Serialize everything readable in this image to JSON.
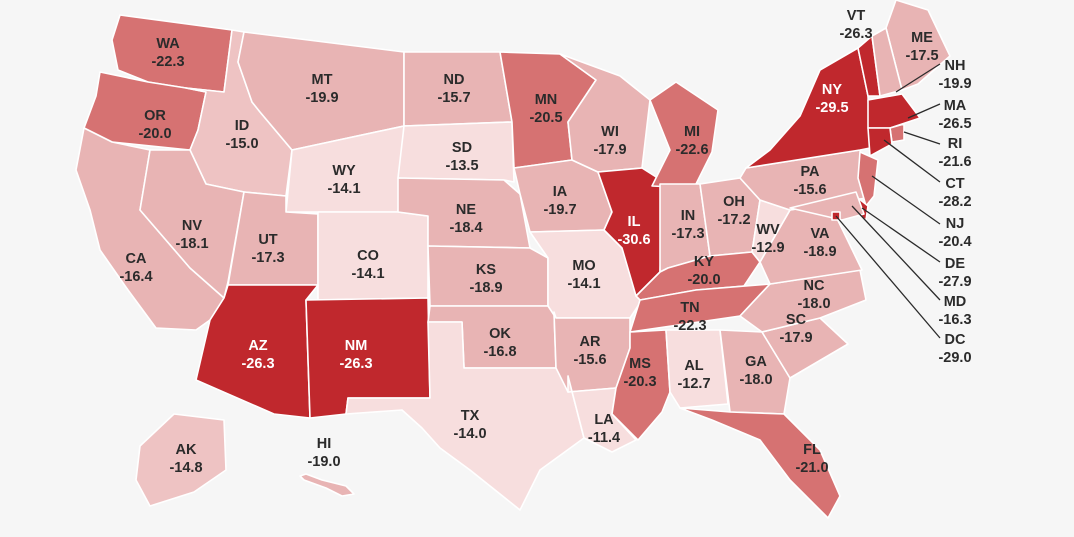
{
  "map": {
    "colors": {
      "shade_1": "#f7dede",
      "shade_2": "#eec3c3",
      "shade_3": "#e8b4b4",
      "shade_4": "#d67272",
      "shade_5": "#c0282d",
      "background": "#f6f6f6",
      "text_dark": "#2b2b2b",
      "text_light": "#ffffff"
    },
    "states": [
      {
        "abbr": "WA",
        "value": "-22.3"
      },
      {
        "abbr": "OR",
        "value": "-20.0"
      },
      {
        "abbr": "CA",
        "value": "-16.4"
      },
      {
        "abbr": "ID",
        "value": "-15.0"
      },
      {
        "abbr": "NV",
        "value": "-18.1"
      },
      {
        "abbr": "MT",
        "value": "-19.9"
      },
      {
        "abbr": "WY",
        "value": "-14.1"
      },
      {
        "abbr": "UT",
        "value": "-17.3"
      },
      {
        "abbr": "CO",
        "value": "-14.1"
      },
      {
        "abbr": "AZ",
        "value": "-26.3"
      },
      {
        "abbr": "NM",
        "value": "-26.3"
      },
      {
        "abbr": "ND",
        "value": "-15.7"
      },
      {
        "abbr": "SD",
        "value": "-13.5"
      },
      {
        "abbr": "NE",
        "value": "-18.4"
      },
      {
        "abbr": "KS",
        "value": "-18.9"
      },
      {
        "abbr": "OK",
        "value": "-16.8"
      },
      {
        "abbr": "TX",
        "value": "-14.0"
      },
      {
        "abbr": "MN",
        "value": "-20.5"
      },
      {
        "abbr": "IA",
        "value": "-19.7"
      },
      {
        "abbr": "MO",
        "value": "-14.1"
      },
      {
        "abbr": "AR",
        "value": "-15.6"
      },
      {
        "abbr": "LA",
        "value": "-11.4"
      },
      {
        "abbr": "WI",
        "value": "-17.9"
      },
      {
        "abbr": "IL",
        "value": "-30.6"
      },
      {
        "abbr": "MI",
        "value": "-22.6"
      },
      {
        "abbr": "IN",
        "value": "-17.3"
      },
      {
        "abbr": "OH",
        "value": "-17.2"
      },
      {
        "abbr": "KY",
        "value": "-20.0"
      },
      {
        "abbr": "TN",
        "value": "-22.3"
      },
      {
        "abbr": "MS",
        "value": "-20.3"
      },
      {
        "abbr": "AL",
        "value": "-12.7"
      },
      {
        "abbr": "GA",
        "value": "-18.0"
      },
      {
        "abbr": "FL",
        "value": "-21.0"
      },
      {
        "abbr": "SC",
        "value": "-17.9"
      },
      {
        "abbr": "NC",
        "value": "-18.0"
      },
      {
        "abbr": "VA",
        "value": "-18.9"
      },
      {
        "abbr": "WV",
        "value": "-12.9"
      },
      {
        "abbr": "PA",
        "value": "-15.6"
      },
      {
        "abbr": "NY",
        "value": "-29.5"
      },
      {
        "abbr": "VT",
        "value": "-26.3"
      },
      {
        "abbr": "ME",
        "value": "-17.5"
      },
      {
        "abbr": "NH",
        "value": "-19.9"
      },
      {
        "abbr": "MA",
        "value": "-26.5"
      },
      {
        "abbr": "RI",
        "value": "-21.6"
      },
      {
        "abbr": "CT",
        "value": "-28.2"
      },
      {
        "abbr": "NJ",
        "value": "-20.4"
      },
      {
        "abbr": "DE",
        "value": "-27.9"
      },
      {
        "abbr": "MD",
        "value": "-16.3"
      },
      {
        "abbr": "DC",
        "value": "-29.0"
      },
      {
        "abbr": "AK",
        "value": "-14.8"
      },
      {
        "abbr": "HI",
        "value": "-19.0"
      }
    ]
  }
}
